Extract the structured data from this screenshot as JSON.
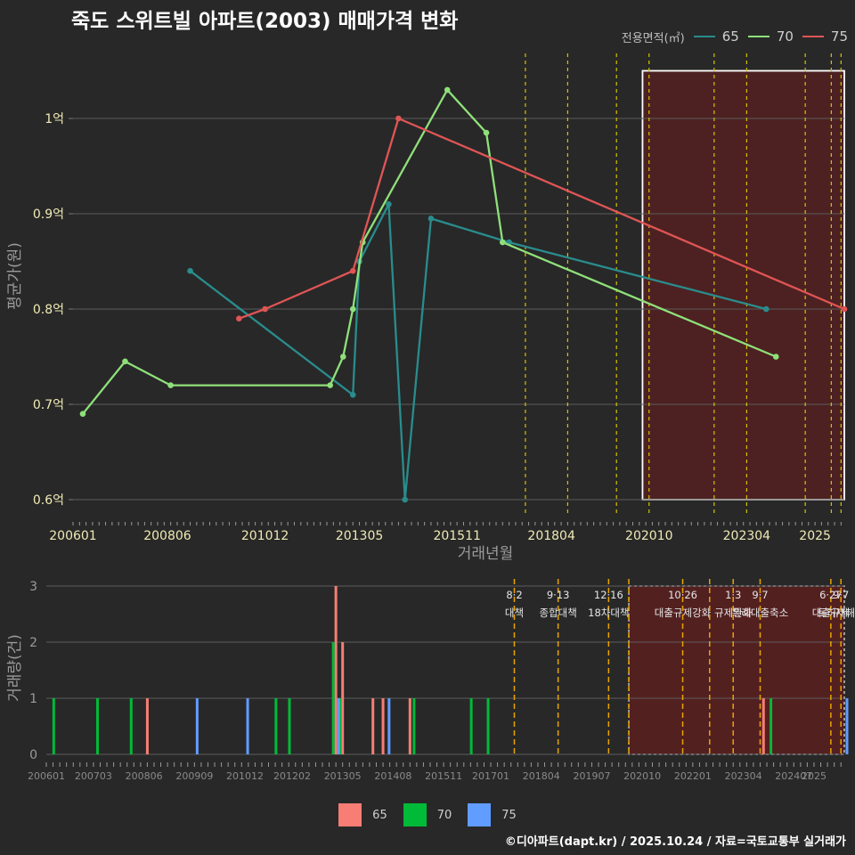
{
  "title": "죽도 스위트빌 아파트(2003) 매매가격 변화",
  "legend": {
    "title": "전용면적(㎡)",
    "items": [
      {
        "label": "65",
        "line_color": "#2a8c8c",
        "bar_color": "#f87d74"
      },
      {
        "label": "70",
        "line_color": "#8fe07a",
        "bar_color": "#00ba38"
      },
      {
        "label": "75",
        "line_color": "#e05555",
        "bar_color": "#619cff"
      }
    ]
  },
  "footer": "©디아파트(dapt.kr) / 2025.10.24 / 자료=국토교통부 실거래가",
  "chart_data": [
    {
      "type": "line",
      "title": "죽도 스위트빌 아파트(2003) 매매가격 변화",
      "xlabel": "거래년월",
      "ylabel": "평균가(원)",
      "xlim": [
        "2006-01",
        "2025-10"
      ],
      "ylim": [
        0.6,
        1.05
      ],
      "x_ticks": [
        "200601",
        "200806",
        "201012",
        "201305",
        "201511",
        "201804",
        "202010",
        "202304",
        "2025"
      ],
      "y_ticks": [
        {
          "value": 0.6,
          "label": "0.6억"
        },
        {
          "value": 0.7,
          "label": "0.7억"
        },
        {
          "value": 0.8,
          "label": "0.8억"
        },
        {
          "value": 0.9,
          "label": "0.9억"
        },
        {
          "value": 1.0,
          "label": "1억"
        }
      ],
      "series": [
        {
          "name": "65",
          "points": [
            [
              "2009-01",
              0.84
            ],
            [
              "2013-03",
              0.71
            ],
            [
              "2013-05",
              0.85
            ],
            [
              "2014-02",
              0.91
            ],
            [
              "2014-07",
              0.6
            ],
            [
              "2015-03",
              0.895
            ],
            [
              "2017-03",
              0.87
            ],
            [
              "2023-10",
              0.8
            ]
          ]
        },
        {
          "name": "70",
          "points": [
            [
              "2006-04",
              0.69
            ],
            [
              "2007-05",
              0.745
            ],
            [
              "2008-07",
              0.72
            ],
            [
              "2012-08",
              0.72
            ],
            [
              "2012-12",
              0.75
            ],
            [
              "2013-03",
              0.8
            ],
            [
              "2013-06",
              0.87
            ],
            [
              "2015-08",
              1.03
            ],
            [
              "2016-08",
              0.985
            ],
            [
              "2017-01",
              0.87
            ],
            [
              "2024-01",
              0.75
            ]
          ]
        },
        {
          "name": "75",
          "points": [
            [
              "2010-04",
              0.79
            ],
            [
              "2010-12",
              0.8
            ],
            [
              "2013-03",
              0.84
            ],
            [
              "2014-05",
              1.0
            ],
            [
              "2025-10",
              0.8
            ]
          ]
        }
      ],
      "policy_lines": [
        "2017-08",
        "2018-09",
        "2019-12",
        "2020-10",
        "2022-06",
        "2023-04",
        "2024-10",
        "2025-06",
        "2025-09"
      ],
      "highlight": {
        "from": "2020-08",
        "to": "2025-10",
        "ymin": 0.6,
        "ymax": 1.05
      }
    },
    {
      "type": "bar",
      "xlabel": "",
      "ylabel": "거래량(건)",
      "xlim": [
        "2006-01",
        "2025-10"
      ],
      "ylim": [
        0,
        3
      ],
      "y_ticks": [
        0,
        1,
        2,
        3
      ],
      "x_ticks": [
        "200601",
        "200703",
        "200806",
        "200909",
        "201012",
        "201202",
        "201305",
        "201408",
        "201511",
        "201701",
        "201804",
        "201907",
        "202010",
        "202201",
        "202304",
        "202407",
        "2025"
      ],
      "series": [
        {
          "name": "65",
          "bars": [
            [
              "2008-07",
              1
            ],
            [
              "2013-03",
              3
            ],
            [
              "2013-05",
              2
            ],
            [
              "2014-02",
              1
            ],
            [
              "2014-05",
              1
            ],
            [
              "2015-01",
              1
            ],
            [
              "2023-10",
              1
            ]
          ]
        },
        {
          "name": "70",
          "bars": [
            [
              "2006-04",
              1
            ],
            [
              "2007-05",
              1
            ],
            [
              "2008-03",
              1
            ],
            [
              "2011-10",
              1
            ],
            [
              "2012-02",
              1
            ],
            [
              "2013-03",
              2
            ],
            [
              "2013-05",
              1
            ],
            [
              "2015-03",
              1
            ],
            [
              "2016-08",
              1
            ],
            [
              "2017-01",
              1
            ],
            [
              "2024-01",
              1
            ]
          ]
        },
        {
          "name": "75",
          "bars": [
            [
              "2009-09",
              1
            ],
            [
              "2010-12",
              1
            ],
            [
              "2013-03",
              1
            ],
            [
              "2014-06",
              1
            ],
            [
              "2025-10",
              1
            ]
          ]
        }
      ],
      "policy_events": [
        {
          "date": "2017-08",
          "label": "8·2 대책"
        },
        {
          "date": "2018-09",
          "label": "9·13 종합대책"
        },
        {
          "date": "2019-12",
          "label": "12·16 18차대책"
        },
        {
          "date": "2020-06",
          "label": ""
        },
        {
          "date": "2021-10",
          "label": "10·26 대출규제강화"
        },
        {
          "date": "2022-06",
          "label": ""
        },
        {
          "date": "2023-01",
          "label": "1·3 규제완화"
        },
        {
          "date": "2023-09",
          "label": "9·7 특례대출축소"
        },
        {
          "date": "2025-06",
          "label": "6·27 대출규제"
        },
        {
          "date": "2025-09",
          "label": "9·7 토허제해제"
        }
      ],
      "highlight": {
        "from": "2020-06",
        "to": "2025-10"
      }
    }
  ]
}
